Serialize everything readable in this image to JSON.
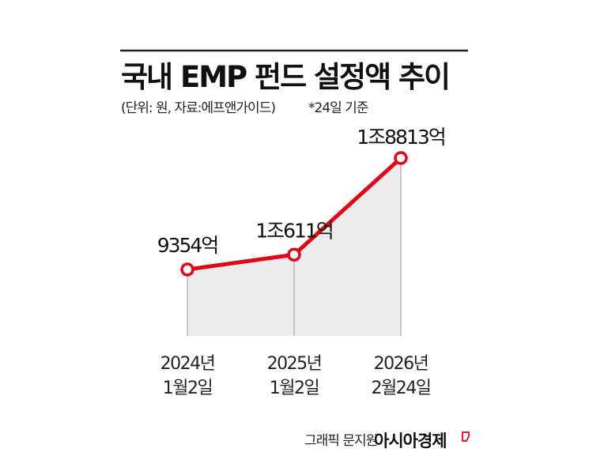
{
  "chart_data": {
    "type": "line",
    "title": "국내 EMP 펀드 설정액 추이",
    "subtitle": "(단위: 원, 자료:에프앤가이드)",
    "note": "*24일 기준",
    "categories": [
      [
        "2024년",
        "1월2일"
      ],
      [
        "2025년",
        "1월2일"
      ],
      [
        "2026년",
        "2월24일"
      ]
    ],
    "values": [
      9354,
      10611,
      18813
    ],
    "value_unit": "억원",
    "data_labels": [
      "9354억",
      "1조611억",
      "1조8813억"
    ],
    "grid": false,
    "legend": "none",
    "colors": {
      "line": "#e30613",
      "area": "#ececec",
      "marker_fill": "#ffffff"
    }
  },
  "credit": {
    "byline": "그래픽 문지원",
    "brand": "아시아경제"
  }
}
